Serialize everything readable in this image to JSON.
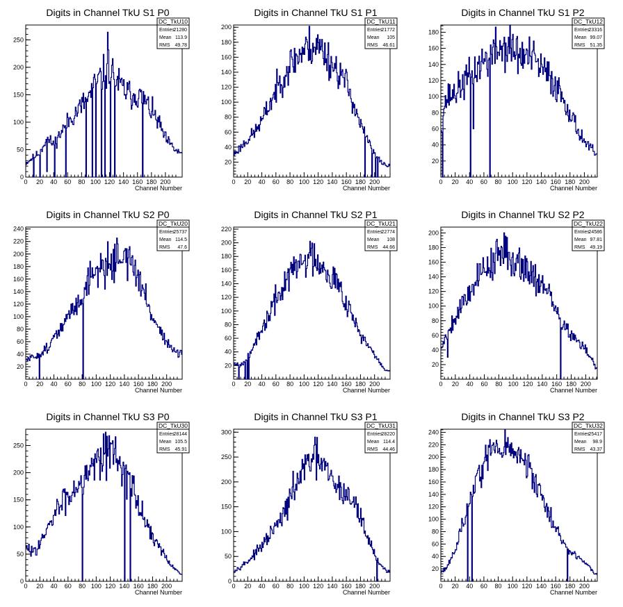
{
  "chart_data": [
    {
      "type": "histogram",
      "title": "Digits in Channel TkU S1 P0",
      "xlabel": "Channel Number",
      "ylabel": "",
      "xlim": [
        0,
        224
      ],
      "ylim": [
        0,
        277
      ],
      "xticks": [
        0,
        20,
        40,
        60,
        80,
        100,
        120,
        140,
        160,
        180,
        200
      ],
      "yticks": [
        0,
        50,
        100,
        150,
        200,
        250
      ],
      "stats": {
        "name": "DC_TkU10",
        "entries": "21280",
        "mean": "113.9",
        "rms": "49.78"
      },
      "profile": [
        [
          0,
          25
        ],
        [
          10,
          35
        ],
        [
          20,
          45
        ],
        [
          30,
          70
        ],
        [
          40,
          60
        ],
        [
          50,
          80
        ],
        [
          60,
          100
        ],
        [
          70,
          115
        ],
        [
          80,
          130
        ],
        [
          90,
          145
        ],
        [
          100,
          170
        ],
        [
          110,
          185
        ],
        [
          120,
          200
        ],
        [
          130,
          175
        ],
        [
          140,
          160
        ],
        [
          150,
          150
        ],
        [
          160,
          150
        ],
        [
          170,
          140
        ],
        [
          180,
          120
        ],
        [
          190,
          100
        ],
        [
          200,
          70
        ],
        [
          210,
          55
        ],
        [
          218,
          45
        ]
      ],
      "seed": 11,
      "noise": 0.11,
      "spikes": [
        [
          11,
          0
        ],
        [
          20,
          0
        ],
        [
          30,
          10
        ],
        [
          41,
          0
        ],
        [
          57,
          0
        ],
        [
          86,
          0
        ],
        [
          95,
          0
        ],
        [
          100,
          0
        ],
        [
          108,
          0
        ],
        [
          113,
          0
        ],
        [
          117,
          264
        ],
        [
          121,
          0
        ],
        [
          127,
          0
        ],
        [
          167,
          0
        ]
      ]
    },
    {
      "type": "histogram",
      "title": "Digits in Channel TkU S1 P1",
      "xlabel": "Channel Number",
      "ylabel": "",
      "xlim": [
        0,
        222
      ],
      "ylim": [
        0,
        203
      ],
      "xticks": [
        0,
        20,
        40,
        60,
        80,
        100,
        120,
        140,
        160,
        180,
        200
      ],
      "yticks": [
        20,
        40,
        60,
        80,
        100,
        120,
        140,
        160,
        180,
        200
      ],
      "stats": {
        "name": "DC_TkU11",
        "entries": "21772",
        "mean": "105",
        "rms": "46.61"
      },
      "profile": [
        [
          0,
          30
        ],
        [
          10,
          40
        ],
        [
          20,
          50
        ],
        [
          30,
          60
        ],
        [
          40,
          75
        ],
        [
          50,
          95
        ],
        [
          60,
          115
        ],
        [
          70,
          135
        ],
        [
          80,
          150
        ],
        [
          90,
          160
        ],
        [
          100,
          170
        ],
        [
          110,
          175
        ],
        [
          120,
          175
        ],
        [
          130,
          165
        ],
        [
          140,
          150
        ],
        [
          150,
          140
        ],
        [
          160,
          125
        ],
        [
          170,
          100
        ],
        [
          180,
          70
        ],
        [
          190,
          50
        ],
        [
          200,
          30
        ],
        [
          210,
          20
        ],
        [
          218,
          15
        ]
      ],
      "seed": 23,
      "noise": 0.1,
      "spikes": [
        [
          186,
          0
        ],
        [
          196,
          0
        ],
        [
          201,
          0
        ],
        [
          204,
          0
        ]
      ]
    },
    {
      "type": "histogram",
      "title": "Digits in Channel TkU S1 P2",
      "xlabel": "Channel Number",
      "ylabel": "",
      "xlim": [
        0,
        218
      ],
      "ylim": [
        0,
        189
      ],
      "xticks": [
        0,
        20,
        40,
        60,
        80,
        100,
        120,
        140,
        160,
        180,
        200
      ],
      "yticks": [
        20,
        40,
        60,
        80,
        100,
        120,
        140,
        160,
        180
      ],
      "stats": {
        "name": "DC_TkU12",
        "entries": "23316",
        "mean": "99.07",
        "rms": "51.35"
      },
      "profile": [
        [
          0,
          60
        ],
        [
          5,
          90
        ],
        [
          10,
          100
        ],
        [
          20,
          105
        ],
        [
          30,
          115
        ],
        [
          40,
          125
        ],
        [
          50,
          135
        ],
        [
          60,
          145
        ],
        [
          70,
          150
        ],
        [
          80,
          160
        ],
        [
          90,
          160
        ],
        [
          100,
          160
        ],
        [
          110,
          150
        ],
        [
          120,
          150
        ],
        [
          130,
          145
        ],
        [
          140,
          135
        ],
        [
          150,
          125
        ],
        [
          160,
          115
        ],
        [
          170,
          100
        ],
        [
          180,
          80
        ],
        [
          190,
          60
        ],
        [
          200,
          45
        ],
        [
          210,
          35
        ],
        [
          215,
          28
        ]
      ],
      "seed": 37,
      "noise": 0.11,
      "spikes": [
        [
          2,
          0
        ],
        [
          41,
          0
        ],
        [
          45,
          60
        ],
        [
          68,
          0
        ]
      ]
    },
    {
      "type": "histogram",
      "title": "Digits in Channel TkU S2 P0",
      "xlabel": "Channel Number",
      "ylabel": "",
      "xlim": [
        0,
        222
      ],
      "ylim": [
        0,
        243
      ],
      "xticks": [
        0,
        20,
        40,
        60,
        80,
        100,
        120,
        140,
        160,
        180,
        200
      ],
      "yticks": [
        20,
        40,
        60,
        80,
        100,
        120,
        140,
        160,
        180,
        200,
        220,
        240
      ],
      "stats": {
        "name": "DC_TkU20",
        "entries": "25737",
        "mean": "114.5",
        "rms": "47.6"
      },
      "profile": [
        [
          0,
          30
        ],
        [
          10,
          35
        ],
        [
          20,
          40
        ],
        [
          30,
          50
        ],
        [
          40,
          65
        ],
        [
          50,
          80
        ],
        [
          60,
          100
        ],
        [
          70,
          115
        ],
        [
          80,
          135
        ],
        [
          90,
          160
        ],
        [
          100,
          175
        ],
        [
          110,
          180
        ],
        [
          120,
          185
        ],
        [
          130,
          195
        ],
        [
          140,
          200
        ],
        [
          150,
          185
        ],
        [
          160,
          160
        ],
        [
          170,
          130
        ],
        [
          180,
          100
        ],
        [
          190,
          80
        ],
        [
          200,
          60
        ],
        [
          210,
          45
        ],
        [
          218,
          40
        ]
      ],
      "seed": 51,
      "noise": 0.1,
      "spikes": [
        [
          19,
          0
        ],
        [
          81,
          0
        ]
      ]
    },
    {
      "type": "histogram",
      "title": "Digits in Channel TkU S2 P1",
      "xlabel": "Channel Number",
      "ylabel": "",
      "xlim": [
        0,
        222
      ],
      "ylim": [
        0,
        223
      ],
      "xticks": [
        0,
        20,
        40,
        60,
        80,
        100,
        120,
        140,
        160,
        180,
        200
      ],
      "yticks": [
        20,
        40,
        60,
        80,
        100,
        120,
        140,
        160,
        180,
        200,
        220
      ],
      "stats": {
        "name": "DC_TkU21",
        "entries": "22774",
        "mean": "108",
        "rms": "44.66"
      },
      "profile": [
        [
          0,
          25
        ],
        [
          10,
          20
        ],
        [
          20,
          35
        ],
        [
          30,
          50
        ],
        [
          40,
          70
        ],
        [
          50,
          95
        ],
        [
          60,
          115
        ],
        [
          70,
          135
        ],
        [
          80,
          155
        ],
        [
          90,
          165
        ],
        [
          100,
          175
        ],
        [
          110,
          180
        ],
        [
          120,
          175
        ],
        [
          130,
          165
        ],
        [
          140,
          150
        ],
        [
          150,
          135
        ],
        [
          160,
          115
        ],
        [
          170,
          90
        ],
        [
          180,
          65
        ],
        [
          190,
          50
        ],
        [
          200,
          35
        ],
        [
          210,
          20
        ],
        [
          218,
          12
        ]
      ],
      "seed": 67,
      "noise": 0.1,
      "spikes": [
        [
          7,
          0
        ],
        [
          16,
          0
        ],
        [
          19,
          0
        ],
        [
          21,
          0
        ]
      ]
    },
    {
      "type": "histogram",
      "title": "Digits in Channel TkU S2 P2",
      "xlabel": "Channel Number",
      "ylabel": "",
      "xlim": [
        0,
        216
      ],
      "ylim": [
        0,
        208
      ],
      "xticks": [
        0,
        20,
        40,
        60,
        80,
        100,
        120,
        140,
        160,
        180,
        200
      ],
      "yticks": [
        20,
        40,
        60,
        80,
        100,
        120,
        140,
        160,
        180,
        200
      ],
      "stats": {
        "name": "DC_TkU22",
        "entries": "24586",
        "mean": "97.81",
        "rms": "49.19"
      },
      "profile": [
        [
          0,
          40
        ],
        [
          5,
          55
        ],
        [
          10,
          65
        ],
        [
          20,
          85
        ],
        [
          30,
          105
        ],
        [
          40,
          120
        ],
        [
          50,
          140
        ],
        [
          60,
          150
        ],
        [
          70,
          160
        ],
        [
          80,
          170
        ],
        [
          90,
          170
        ],
        [
          100,
          165
        ],
        [
          110,
          160
        ],
        [
          120,
          150
        ],
        [
          130,
          140
        ],
        [
          140,
          130
        ],
        [
          150,
          115
        ],
        [
          160,
          90
        ],
        [
          170,
          75
        ],
        [
          180,
          60
        ],
        [
          190,
          50
        ],
        [
          200,
          40
        ],
        [
          210,
          25
        ],
        [
          214,
          15
        ]
      ],
      "seed": 79,
      "noise": 0.1,
      "spikes": [
        [
          9,
          30
        ],
        [
          165,
          0
        ]
      ]
    },
    {
      "type": "histogram",
      "title": "Digits in Channel TkU S3 P0",
      "xlabel": "Channel Number",
      "ylabel": "",
      "xlim": [
        0,
        222
      ],
      "ylim": [
        0,
        280
      ],
      "xticks": [
        0,
        20,
        40,
        60,
        80,
        100,
        120,
        140,
        160,
        180,
        200
      ],
      "yticks": [
        0,
        50,
        100,
        150,
        200,
        250
      ],
      "stats": {
        "name": "DC_TkU30",
        "entries": "28144",
        "mean": "105.5",
        "rms": "45.91"
      },
      "profile": [
        [
          0,
          60
        ],
        [
          10,
          55
        ],
        [
          20,
          70
        ],
        [
          30,
          90
        ],
        [
          40,
          120
        ],
        [
          50,
          145
        ],
        [
          60,
          155
        ],
        [
          70,
          175
        ],
        [
          80,
          190
        ],
        [
          90,
          210
        ],
        [
          100,
          225
        ],
        [
          110,
          245
        ],
        [
          120,
          240
        ],
        [
          130,
          230
        ],
        [
          140,
          205
        ],
        [
          150,
          175
        ],
        [
          160,
          140
        ],
        [
          170,
          110
        ],
        [
          180,
          85
        ],
        [
          190,
          60
        ],
        [
          200,
          40
        ],
        [
          210,
          25
        ],
        [
          218,
          15
        ]
      ],
      "seed": 83,
      "noise": 0.11,
      "spikes": [
        [
          80,
          0
        ],
        [
          140,
          0
        ],
        [
          148,
          0
        ]
      ]
    },
    {
      "type": "histogram",
      "title": "Digits in Channel TkU S3 P1",
      "xlabel": "Channel Number",
      "ylabel": "",
      "xlim": [
        0,
        222
      ],
      "ylim": [
        0,
        306
      ],
      "xticks": [
        0,
        20,
        40,
        60,
        80,
        100,
        120,
        140,
        160,
        180,
        200
      ],
      "yticks": [
        0,
        50,
        100,
        150,
        200,
        250,
        300
      ],
      "stats": {
        "name": "DC_TkU31",
        "entries": "28220",
        "mean": "114.4",
        "rms": "44.46"
      },
      "profile": [
        [
          0,
          20
        ],
        [
          10,
          30
        ],
        [
          20,
          40
        ],
        [
          30,
          55
        ],
        [
          40,
          70
        ],
        [
          50,
          90
        ],
        [
          60,
          110
        ],
        [
          70,
          130
        ],
        [
          80,
          165
        ],
        [
          90,
          200
        ],
        [
          100,
          225
        ],
        [
          110,
          245
        ],
        [
          120,
          245
        ],
        [
          130,
          225
        ],
        [
          140,
          200
        ],
        [
          150,
          185
        ],
        [
          160,
          175
        ],
        [
          170,
          160
        ],
        [
          180,
          130
        ],
        [
          190,
          90
        ],
        [
          200,
          55
        ],
        [
          210,
          30
        ],
        [
          218,
          20
        ]
      ],
      "seed": 97,
      "noise": 0.1,
      "spikes": [
        [
          203,
          0
        ]
      ]
    },
    {
      "type": "histogram",
      "title": "Digits in Channel TkU S3 P2",
      "xlabel": "Channel Number",
      "ylabel": "",
      "xlim": [
        0,
        218
      ],
      "ylim": [
        0,
        245
      ],
      "xticks": [
        0,
        20,
        40,
        60,
        80,
        100,
        120,
        140,
        160,
        180,
        200
      ],
      "yticks": [
        20,
        40,
        60,
        80,
        100,
        120,
        140,
        160,
        180,
        200,
        220,
        240
      ],
      "stats": {
        "name": "DC_TkU32",
        "entries": "25417",
        "mean": "98.9",
        "rms": "43.37"
      },
      "profile": [
        [
          0,
          15
        ],
        [
          10,
          25
        ],
        [
          20,
          50
        ],
        [
          30,
          90
        ],
        [
          40,
          130
        ],
        [
          50,
          165
        ],
        [
          60,
          190
        ],
        [
          70,
          210
        ],
        [
          80,
          215
        ],
        [
          90,
          215
        ],
        [
          100,
          210
        ],
        [
          110,
          200
        ],
        [
          120,
          185
        ],
        [
          130,
          165
        ],
        [
          140,
          140
        ],
        [
          150,
          110
        ],
        [
          160,
          85
        ],
        [
          170,
          65
        ],
        [
          180,
          50
        ],
        [
          190,
          40
        ],
        [
          200,
          30
        ],
        [
          210,
          20
        ],
        [
          214,
          12
        ]
      ],
      "seed": 113,
      "noise": 0.09,
      "spikes": [
        [
          37,
          0
        ],
        [
          43,
          0
        ],
        [
          176,
          0
        ]
      ]
    }
  ],
  "stat_labels": {
    "entries": "Entries",
    "mean": "Mean",
    "rms": "RMS"
  },
  "colors": {
    "line": "#00007f",
    "axis": "#000000",
    "background": "#ffffff"
  }
}
